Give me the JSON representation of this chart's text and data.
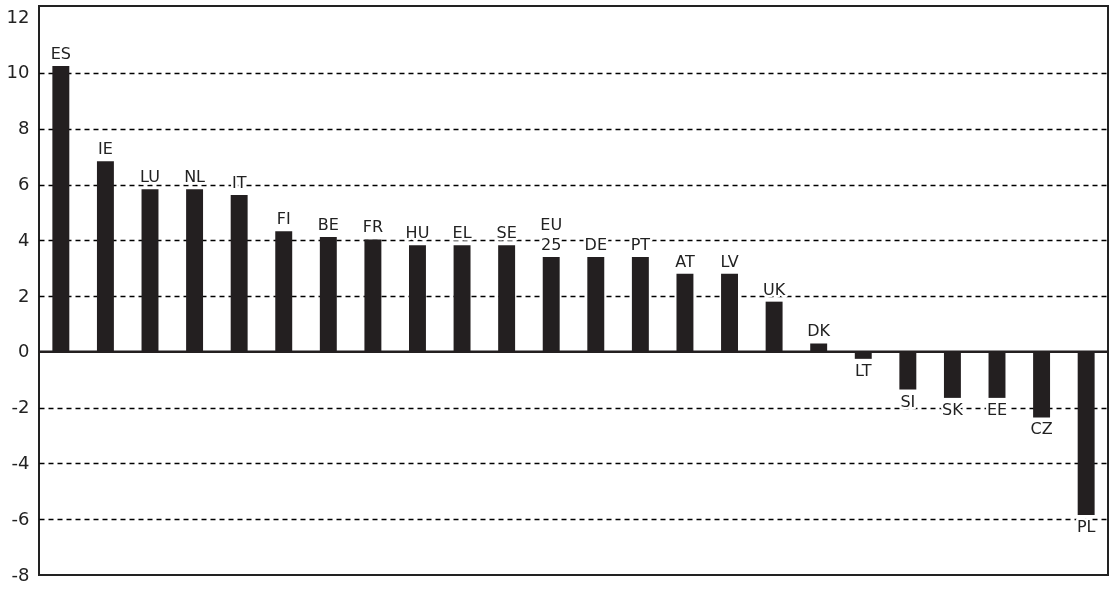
{
  "chart_data": {
    "type": "bar",
    "categories": [
      "ES",
      "IE",
      "LU",
      "NL",
      "IT",
      "FI",
      "BE",
      "FR",
      "HU",
      "EL",
      "SE",
      "EU 25",
      "DE",
      "PT",
      "AT",
      "LV",
      "UK",
      "DK",
      "LT",
      "SI",
      "SK",
      "EE",
      "CZ",
      "PL"
    ],
    "values": [
      10.25,
      6.83,
      5.83,
      5.83,
      5.62,
      4.32,
      4.12,
      4.03,
      3.82,
      3.82,
      3.82,
      3.4,
      3.4,
      3.4,
      2.8,
      2.8,
      1.8,
      0.3,
      -0.25,
      -1.35,
      -1.65,
      -1.65,
      -2.35,
      -5.85
    ],
    "color": "#231f20",
    "ylim": [
      -8,
      12.4
    ],
    "yticks": [
      -8,
      -6,
      -4,
      -2,
      0,
      2,
      4,
      6,
      8,
      10,
      12
    ],
    "grid": "y",
    "line_style": "dashed",
    "tick_labels": "y",
    "ref_lines": [
      {
        "axis": "y",
        "value": 0,
        "color": "#231f20"
      }
    ]
  }
}
